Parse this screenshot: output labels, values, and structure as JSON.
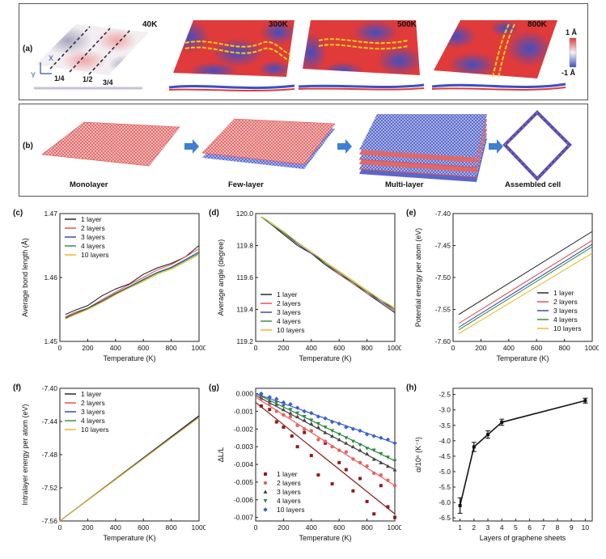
{
  "panel_a": {
    "label": "(a)",
    "temps": [
      "40K",
      "300K",
      "500K",
      "800K"
    ],
    "axis_x": "X",
    "axis_y": "Y",
    "fractions": [
      "1/4",
      "1/2",
      "3/4"
    ],
    "colorbar_top": "1 Å",
    "colorbar_bottom": "-1 Å",
    "colors": {
      "high": "#e03a3a",
      "mid": "#f4f2f2",
      "low": "#3a4fc8"
    }
  },
  "panel_b": {
    "label": "(b)",
    "stages": [
      "Monolayer",
      "Few-layer",
      "Multi-layer",
      "Assembled cell"
    ],
    "colors": {
      "red": "#e05050",
      "blue": "#3b4fc4",
      "arrow": "#3f7fd0"
    }
  },
  "series_colors": {
    "1 layer": "#1a1a1a",
    "2 layers": "#e04848",
    "3 layers": "#2f3fa8",
    "4 layers": "#2e8a3e",
    "10 layers": "#e8b41c"
  },
  "chart_data": [
    {
      "id": "c",
      "label": "(c)",
      "type": "line",
      "xlabel": "Temperature (K)",
      "ylabel": "Average bond length (Å)",
      "xlim": [
        0,
        1000
      ],
      "ylim": [
        1.45,
        1.47
      ],
      "xticks": [
        "0",
        "200",
        "400",
        "600",
        "800",
        "1000"
      ],
      "yticks": [
        "1.45",
        "1.46",
        "1.47"
      ],
      "legend": [
        "1 layer",
        "2 layers",
        "3 layers",
        "4 layers",
        "10 layers"
      ],
      "legend_position": "top-left",
      "x": [
        40,
        100,
        200,
        300,
        400,
        500,
        600,
        700,
        800,
        900,
        1000
      ],
      "series": [
        {
          "name": "1 layer",
          "values": [
            1.4542,
            1.4548,
            1.4556,
            1.4571,
            1.4582,
            1.459,
            1.4605,
            1.4615,
            1.4622,
            1.4632,
            1.465
          ]
        },
        {
          "name": "2 layers",
          "values": [
            1.4538,
            1.4545,
            1.4552,
            1.4565,
            1.4577,
            1.4589,
            1.46,
            1.4612,
            1.462,
            1.4632,
            1.4645
          ]
        },
        {
          "name": "3 layers",
          "values": [
            1.4537,
            1.4543,
            1.4552,
            1.4563,
            1.4575,
            1.4586,
            1.4597,
            1.4608,
            1.4616,
            1.4628,
            1.464
          ]
        },
        {
          "name": "4 layers",
          "values": [
            1.4536,
            1.4542,
            1.4551,
            1.4562,
            1.4574,
            1.4585,
            1.4596,
            1.4607,
            1.4615,
            1.4626,
            1.4638
          ]
        },
        {
          "name": "10 layers",
          "values": [
            1.4535,
            1.4541,
            1.455,
            1.4561,
            1.4573,
            1.4584,
            1.4594,
            1.4605,
            1.4613,
            1.4624,
            1.4636
          ]
        }
      ]
    },
    {
      "id": "d",
      "label": "(d)",
      "type": "line",
      "xlabel": "Temperature (K)",
      "ylabel": "Average angle (degree)",
      "xlim": [
        0,
        1000
      ],
      "ylim": [
        119.2,
        120.0
      ],
      "xticks": [
        "0",
        "200",
        "400",
        "600",
        "800",
        "1000"
      ],
      "yticks": [
        "119.2",
        "119.4",
        "119.6",
        "119.8",
        "120.0"
      ],
      "legend": [
        "1 layer",
        "2 layers",
        "3 layers",
        "4 layers",
        "10 layers"
      ],
      "legend_position": "bottom-left",
      "x": [
        40,
        100,
        200,
        300,
        400,
        500,
        600,
        700,
        800,
        900,
        1000
      ],
      "series": [
        {
          "name": "1 layer",
          "values": [
            119.98,
            119.94,
            119.87,
            119.8,
            119.75,
            119.68,
            119.62,
            119.57,
            119.5,
            119.44,
            119.38
          ]
        },
        {
          "name": "2 layers",
          "values": [
            119.98,
            119.94,
            119.88,
            119.81,
            119.75,
            119.69,
            119.62,
            119.56,
            119.5,
            119.45,
            119.39
          ]
        },
        {
          "name": "3 layers",
          "values": [
            119.98,
            119.94,
            119.88,
            119.81,
            119.75,
            119.69,
            119.63,
            119.57,
            119.51,
            119.45,
            119.4
          ]
        },
        {
          "name": "4 layers",
          "values": [
            119.98,
            119.94,
            119.88,
            119.82,
            119.76,
            119.69,
            119.63,
            119.57,
            119.51,
            119.46,
            119.4
          ]
        },
        {
          "name": "10 layers",
          "values": [
            119.98,
            119.95,
            119.89,
            119.82,
            119.76,
            119.7,
            119.64,
            119.58,
            119.52,
            119.46,
            119.41
          ]
        }
      ]
    },
    {
      "id": "e",
      "label": "(e)",
      "type": "line",
      "xlabel": "Temperature (K)",
      "ylabel": "Potential energy per atom (eV)",
      "xlim": [
        0,
        1000
      ],
      "ylim": [
        -7.6,
        -7.4
      ],
      "xticks": [
        "0",
        "200",
        "400",
        "600",
        "800",
        "1000"
      ],
      "yticks": [
        "-7.40",
        "-7.45",
        "-7.50",
        "-7.55",
        "-7.60"
      ],
      "legend": [
        "1 layer",
        "2 layers",
        "3 layers",
        "4 layers",
        "10 layers"
      ],
      "legend_position": "bottom-right",
      "x": [
        40,
        1000
      ],
      "series": [
        {
          "name": "1 layer",
          "values": [
            -7.558,
            -7.428
          ]
        },
        {
          "name": "2 layers",
          "values": [
            -7.572,
            -7.442
          ]
        },
        {
          "name": "3 layers",
          "values": [
            -7.578,
            -7.448
          ]
        },
        {
          "name": "4 layers",
          "values": [
            -7.582,
            -7.452
          ]
        },
        {
          "name": "10 layers",
          "values": [
            -7.588,
            -7.462
          ]
        }
      ]
    },
    {
      "id": "f",
      "label": "(f)",
      "type": "line",
      "xlabel": "Temperature (K)",
      "ylabel": "Intralayer energy per atom (eV)",
      "xlim": [
        0,
        1000
      ],
      "ylim": [
        -7.56,
        -7.4
      ],
      "xticks": [
        "0",
        "200",
        "400",
        "600",
        "800",
        "1000"
      ],
      "yticks": [
        "-7.40",
        "-7.44",
        "-7.48",
        "-7.52",
        "-7.56"
      ],
      "legend": [
        "1 layer",
        "2 layers",
        "3 layers",
        "4 layers",
        "10 layers"
      ],
      "legend_position": "top-left",
      "x": [
        0,
        1000
      ],
      "series": [
        {
          "name": "1 layer",
          "values": [
            -7.56,
            -7.433
          ]
        },
        {
          "name": "2 layers",
          "values": [
            -7.56,
            -7.434
          ]
        },
        {
          "name": "3 layers",
          "values": [
            -7.56,
            -7.434
          ]
        },
        {
          "name": "4 layers",
          "values": [
            -7.56,
            -7.435
          ]
        },
        {
          "name": "10 layers",
          "values": [
            -7.56,
            -7.435
          ]
        }
      ]
    },
    {
      "id": "g",
      "label": "(g)",
      "type": "scatter",
      "xlabel": "Temperature (K)",
      "ylabel": "ΔL/L",
      "xlim": [
        0,
        1000
      ],
      "ylim": [
        -0.0072,
        0.0003
      ],
      "xticks": [
        "0",
        "200",
        "400",
        "600",
        "800",
        "1000"
      ],
      "yticks": [
        "0.000",
        "-0.001",
        "-0.002",
        "-0.003",
        "-0.004",
        "-0.005",
        "-0.006",
        "-0.007"
      ],
      "legend": [
        "1 layer",
        "2 layers",
        "3 layers",
        "4 layers",
        "10 layers"
      ],
      "legend_position": "bottom-left",
      "series": [
        {
          "name": "1 layer",
          "marker": "square",
          "color": "#8b1e1e",
          "fit": [
            [
              0,
              -0.0005
            ],
            [
              1000,
              -0.0068
            ]
          ],
          "points": [
            [
              40,
              -0.0007
            ],
            [
              100,
              -0.0009
            ],
            [
              150,
              -0.0016
            ],
            [
              200,
              -0.0019
            ],
            [
              260,
              -0.0024
            ],
            [
              300,
              -0.003
            ],
            [
              350,
              -0.0022
            ],
            [
              400,
              -0.0035
            ],
            [
              450,
              -0.0046
            ],
            [
              500,
              -0.0028
            ],
            [
              550,
              -0.0051
            ],
            [
              600,
              -0.0039
            ],
            [
              650,
              -0.0043
            ],
            [
              700,
              -0.0055
            ],
            [
              750,
              -0.0048
            ],
            [
              800,
              -0.0061
            ],
            [
              850,
              -0.0068
            ],
            [
              900,
              -0.0052
            ],
            [
              950,
              -0.0064
            ],
            [
              1000,
              -0.007
            ]
          ]
        },
        {
          "name": "2 layers",
          "marker": "circle",
          "color": "#e86060",
          "fit": [
            [
              0,
              -0.0002
            ],
            [
              1000,
              -0.0052
            ]
          ],
          "points": [
            [
              40,
              -0.0003
            ],
            [
              100,
              -0.0006
            ],
            [
              150,
              -0.001
            ],
            [
              200,
              -0.0012
            ],
            [
              250,
              -0.0013
            ],
            [
              300,
              -0.0018
            ],
            [
              350,
              -0.002
            ],
            [
              400,
              -0.0021
            ],
            [
              450,
              -0.0026
            ],
            [
              500,
              -0.0027
            ],
            [
              550,
              -0.003
            ],
            [
              600,
              -0.0032
            ],
            [
              650,
              -0.0033
            ],
            [
              700,
              -0.0037
            ],
            [
              750,
              -0.0039
            ],
            [
              800,
              -0.0041
            ],
            [
              850,
              -0.0045
            ],
            [
              900,
              -0.0046
            ],
            [
              950,
              -0.0049
            ],
            [
              1000,
              -0.0052
            ]
          ]
        },
        {
          "name": "3 layers",
          "marker": "triangle-up",
          "color": "#444444",
          "fit": [
            [
              0,
              -0.0001
            ],
            [
              1000,
              -0.0043
            ]
          ],
          "points": [
            [
              40,
              -0.0001
            ],
            [
              100,
              -0.0004
            ],
            [
              150,
              -0.0006
            ],
            [
              200,
              -0.0009
            ],
            [
              250,
              -0.0011
            ],
            [
              300,
              -0.0013
            ],
            [
              350,
              -0.0015
            ],
            [
              400,
              -0.0017
            ],
            [
              450,
              -0.0019
            ],
            [
              500,
              -0.0022
            ],
            [
              550,
              -0.0024
            ],
            [
              600,
              -0.0026
            ],
            [
              650,
              -0.0028
            ],
            [
              700,
              -0.003
            ],
            [
              750,
              -0.0032
            ],
            [
              800,
              -0.0034
            ],
            [
              850,
              -0.0037
            ],
            [
              900,
              -0.0039
            ],
            [
              950,
              -0.0041
            ],
            [
              1000,
              -0.0043
            ]
          ]
        },
        {
          "name": "4 layers",
          "marker": "triangle-down",
          "color": "#2e8a3e",
          "fit": [
            [
              0,
              0.0
            ],
            [
              1000,
              -0.0038
            ]
          ],
          "points": [
            [
              40,
              -0.0001
            ],
            [
              100,
              -0.0003
            ],
            [
              150,
              -0.0005
            ],
            [
              200,
              -0.0007
            ],
            [
              250,
              -0.0009
            ],
            [
              300,
              -0.0011
            ],
            [
              350,
              -0.0013
            ],
            [
              400,
              -0.0015
            ],
            [
              450,
              -0.0017
            ],
            [
              500,
              -0.0019
            ],
            [
              550,
              -0.0021
            ],
            [
              600,
              -0.0023
            ],
            [
              650,
              -0.0025
            ],
            [
              700,
              -0.0027
            ],
            [
              750,
              -0.0029
            ],
            [
              800,
              -0.0031
            ],
            [
              850,
              -0.0032
            ],
            [
              900,
              -0.0034
            ],
            [
              950,
              -0.0036
            ],
            [
              1000,
              -0.0038
            ]
          ]
        },
        {
          "name": "10 layers",
          "marker": "diamond",
          "color": "#3b5fd0",
          "fit": [
            [
              0,
              0.0
            ],
            [
              1000,
              -0.0028
            ]
          ],
          "points": [
            [
              40,
              0.0
            ],
            [
              100,
              -0.0002
            ],
            [
              150,
              -0.0003
            ],
            [
              200,
              -0.0005
            ],
            [
              250,
              -0.0006
            ],
            [
              300,
              -0.0008
            ],
            [
              350,
              -0.001
            ],
            [
              400,
              -0.0011
            ],
            [
              450,
              -0.0013
            ],
            [
              500,
              -0.0014
            ],
            [
              550,
              -0.0016
            ],
            [
              600,
              -0.0017
            ],
            [
              650,
              -0.0019
            ],
            [
              700,
              -0.002
            ],
            [
              750,
              -0.0021
            ],
            [
              800,
              -0.0023
            ],
            [
              850,
              -0.0024
            ],
            [
              900,
              -0.0025
            ],
            [
              950,
              -0.0026
            ],
            [
              1000,
              -0.0028
            ]
          ]
        }
      ]
    },
    {
      "id": "h",
      "label": "(h)",
      "type": "line",
      "xlabel": "Layers of graphene sheets",
      "ylabel": "α/10⁶ (K⁻¹)",
      "xlim": [
        0.5,
        10.5
      ],
      "ylim": [
        -6.6,
        -2.3
      ],
      "xticks": [
        "1",
        "2",
        "3",
        "4",
        "5",
        "6",
        "7",
        "8",
        "9",
        "10"
      ],
      "yticks": [
        "-2.5",
        "-3.0",
        "-3.5",
        "-4.0",
        "-4.5",
        "-5.0",
        "-5.5",
        "-6.0",
        "-6.5"
      ],
      "x": [
        1,
        2,
        3,
        4,
        10
      ],
      "series": [
        {
          "name": "",
          "values": [
            -6.1,
            -4.2,
            -3.8,
            -3.4,
            -2.7
          ],
          "errors": [
            0.25,
            0.15,
            0.12,
            0.1,
            0.08
          ]
        }
      ]
    }
  ]
}
